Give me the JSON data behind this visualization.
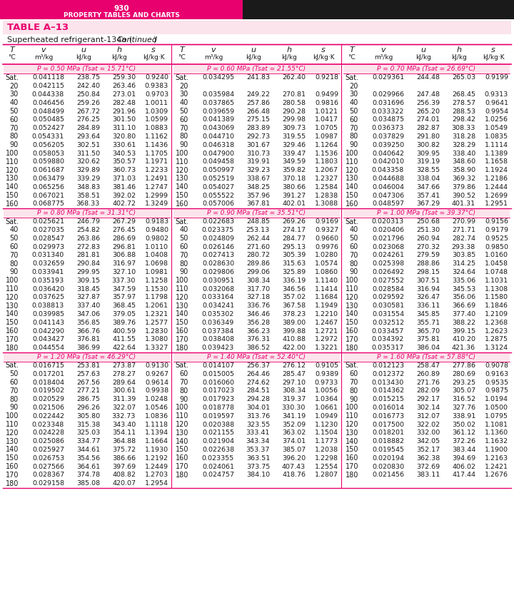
{
  "page_number": "930",
  "page_title": "PROPERTY TABLES AND CHARTS",
  "table_name": "TABLE A-13",
  "subtitle_normal": "Superheated refrigerant-134a (",
  "subtitle_italic": "Continued",
  "subtitle_end": ")",
  "col_headers_italic": [
    "T",
    "v",
    "u",
    "h",
    "s"
  ],
  "col_headers_normal": [
    "°C",
    "m³/kg",
    "kJ/kg",
    "kJ/kg",
    "kJ/kg·K"
  ],
  "sections": [
    {
      "label_pre": "P = 0.50 MPa (",
      "label_tsat": "T",
      "label_sub": "sat",
      "label_post": " = 15.71°C)",
      "rows": [
        [
          "Sat.",
          "0.041118",
          "238.75",
          "259.30",
          "0.9240"
        ],
        [
          "20",
          "0.042115",
          "242.40",
          "263.46",
          "0.9383"
        ],
        [
          "30",
          "0.044338",
          "250.84",
          "273.01",
          "0.9703"
        ],
        [
          "40",
          "0.046456",
          "259.26",
          "282.48",
          "1.0011"
        ],
        [
          "50",
          "0.048499",
          "267.72",
          "291.96",
          "1.0309"
        ],
        [
          "60",
          "0.050485",
          "276.25",
          "301.50",
          "1.0599"
        ],
        [
          "70",
          "0.052427",
          "284.89",
          "311.10",
          "1.0883"
        ],
        [
          "80",
          "0.054331",
          "293.64",
          "320.80",
          "1.1162"
        ],
        [
          "90",
          "0.056205",
          "302.51",
          "330.61",
          "1.1436"
        ],
        [
          "100",
          "0.058053",
          "311.50",
          "340.53",
          "1.1705"
        ],
        [
          "110",
          "0.059880",
          "320.62",
          "350.57",
          "1.1971"
        ],
        [
          "120",
          "0.061687",
          "329.89",
          "360.73",
          "1.2233"
        ],
        [
          "130",
          "0.063479",
          "339.29",
          "371.03",
          "1.2491"
        ],
        [
          "140",
          "0.065256",
          "348.83",
          "381.46",
          "1.2747"
        ],
        [
          "150",
          "0.067021",
          "358.51",
          "392.02",
          "1.2999"
        ],
        [
          "160",
          "0.068775",
          "368.33",
          "402.72",
          "1.3249"
        ]
      ]
    },
    {
      "label_pre": "P = 0.60 MPa (",
      "label_tsat": "T",
      "label_sub": "sat",
      "label_post": " = 21.55°C)",
      "rows": [
        [
          "Sat.",
          "0.034295",
          "241.83",
          "262.40",
          "0.9218"
        ],
        [
          "20",
          "",
          "",
          "",
          ""
        ],
        [
          "30",
          "0.035984",
          "249.22",
          "270.81",
          "0.9499"
        ],
        [
          "40",
          "0.037865",
          "257.86",
          "280.58",
          "0.9816"
        ],
        [
          "50",
          "0.039659",
          "266.48",
          "290.28",
          "1.0121"
        ],
        [
          "60",
          "0.041389",
          "275.15",
          "299.98",
          "1.0417"
        ],
        [
          "70",
          "0.043069",
          "283.89",
          "309.73",
          "1.0705"
        ],
        [
          "80",
          "0.044710",
          "292.73",
          "319.55",
          "1.0987"
        ],
        [
          "90",
          "0.046318",
          "301.67",
          "329.46",
          "1.1264"
        ],
        [
          "100",
          "0.047900",
          "310.73",
          "339.47",
          "1.1536"
        ],
        [
          "110",
          "0.049458",
          "319.91",
          "349.59",
          "1.1803"
        ],
        [
          "120",
          "0.050997",
          "329.23",
          "359.82",
          "1.2067"
        ],
        [
          "130",
          "0.052519",
          "338.67",
          "370.18",
          "1.2327"
        ],
        [
          "140",
          "0.054027",
          "348.25",
          "380.66",
          "1.2584"
        ],
        [
          "150",
          "0.055522",
          "357.96",
          "391.27",
          "1.2838"
        ],
        [
          "160",
          "0.057006",
          "367.81",
          "402.01",
          "1.3088"
        ]
      ]
    },
    {
      "label_pre": "P = 0.70 MPa (",
      "label_tsat": "T",
      "label_sub": "sat",
      "label_post": " = 26.69°C)",
      "rows": [
        [
          "Sat.",
          "0.029361",
          "244.48",
          "265.03",
          "0.9199"
        ],
        [
          "20",
          "",
          "",
          "",
          ""
        ],
        [
          "30",
          "0.029966",
          "247.48",
          "268.45",
          "0.9313"
        ],
        [
          "40",
          "0.031696",
          "256.39",
          "278.57",
          "0.9641"
        ],
        [
          "50",
          "0.033322",
          "265.20",
          "288.53",
          "0.9954"
        ],
        [
          "60",
          "0.034875",
          "274.01",
          "298.42",
          "1.0256"
        ],
        [
          "70",
          "0.036373",
          "282.87",
          "308.33",
          "1.0549"
        ],
        [
          "80",
          "0.037829",
          "291.80",
          "318.28",
          "1.0835"
        ],
        [
          "90",
          "0.039250",
          "300.82",
          "328.29",
          "1.1114"
        ],
        [
          "100",
          "0.040642",
          "309.95",
          "338.40",
          "1.1389"
        ],
        [
          "110",
          "0.042010",
          "319.19",
          "348.60",
          "1.1658"
        ],
        [
          "120",
          "0.043358",
          "328.55",
          "358.90",
          "1.1924"
        ],
        [
          "130",
          "0.044688",
          "338.04",
          "369.32",
          "1.2186"
        ],
        [
          "140",
          "0.046004",
          "347.66",
          "379.86",
          "1.2444"
        ],
        [
          "150",
          "0.047306",
          "357.41",
          "390.52",
          "1.2699"
        ],
        [
          "160",
          "0.048597",
          "367.29",
          "401.31",
          "1.2951"
        ]
      ]
    },
    {
      "label_pre": "P = 0.80 MPa (",
      "label_tsat": "T",
      "label_sub": "sat",
      "label_post": " = 31.31°C)",
      "rows": [
        [
          "Sat.",
          "0.025621",
          "246.79",
          "267.29",
          "0.9183"
        ],
        [
          "40",
          "0.027035",
          "254.82",
          "276.45",
          "0.9480"
        ],
        [
          "50",
          "0.028547",
          "263.86",
          "286.69",
          "0.9802"
        ],
        [
          "60",
          "0.029973",
          "272.83",
          "296.81",
          "1.0110"
        ],
        [
          "70",
          "0.031340",
          "281.81",
          "306.88",
          "1.0408"
        ],
        [
          "80",
          "0.032659",
          "290.84",
          "316.97",
          "1.0698"
        ],
        [
          "90",
          "0.033941",
          "299.95",
          "327.10",
          "1.0981"
        ],
        [
          "100",
          "0.035193",
          "309.15",
          "337.30",
          "1.1258"
        ],
        [
          "110",
          "0.036420",
          "318.45",
          "347.59",
          "1.1530"
        ],
        [
          "120",
          "0.037625",
          "327.87",
          "357.97",
          "1.1798"
        ],
        [
          "130",
          "0.038813",
          "337.40",
          "368.45",
          "1.2061"
        ],
        [
          "140",
          "0.039985",
          "347.06",
          "379.05",
          "1.2321"
        ],
        [
          "150",
          "0.041143",
          "356.85",
          "389.76",
          "1.2577"
        ],
        [
          "160",
          "0.042290",
          "366.76",
          "400.59",
          "1.2830"
        ],
        [
          "170",
          "0.043427",
          "376.81",
          "411.55",
          "1.3080"
        ],
        [
          "180",
          "0.044554",
          "386.99",
          "422.64",
          "1.3327"
        ]
      ]
    },
    {
      "label_pre": "P = 0.90 MPa (",
      "label_tsat": "T",
      "label_sub": "sat",
      "label_post": " = 35.51°C)",
      "rows": [
        [
          "Sat.",
          "0.022683",
          "248.85",
          "269.26",
          "0.9169"
        ],
        [
          "40",
          "0.023375",
          "253.13",
          "274.17",
          "0.9327"
        ],
        [
          "50",
          "0.024809",
          "262.44",
          "284.77",
          "0.9660"
        ],
        [
          "60",
          "0.026146",
          "271.60",
          "295.13",
          "0.9976"
        ],
        [
          "70",
          "0.027413",
          "280.72",
          "305.39",
          "1.0280"
        ],
        [
          "80",
          "0.028630",
          "289.86",
          "315.63",
          "1.0574"
        ],
        [
          "90",
          "0.029806",
          "299.06",
          "325.89",
          "1.0860"
        ],
        [
          "100",
          "0.030951",
          "308.34",
          "336.19",
          "1.1140"
        ],
        [
          "110",
          "0.032068",
          "317.70",
          "346.56",
          "1.1414"
        ],
        [
          "120",
          "0.033164",
          "327.18",
          "357.02",
          "1.1684"
        ],
        [
          "130",
          "0.034241",
          "336.76",
          "367.58",
          "1.1949"
        ],
        [
          "140",
          "0.035302",
          "346.46",
          "378.23",
          "1.2210"
        ],
        [
          "150",
          "0.036349",
          "356.28",
          "389.00",
          "1.2467"
        ],
        [
          "160",
          "0.037384",
          "366.23",
          "399.88",
          "1.2721"
        ],
        [
          "170",
          "0.038408",
          "376.31",
          "410.88",
          "1.2972"
        ],
        [
          "180",
          "0.039423",
          "386.52",
          "422.00",
          "1.3221"
        ]
      ]
    },
    {
      "label_pre": "P = 1.00 MPa (",
      "label_tsat": "T",
      "label_sub": "sat",
      "label_post": " = 39.37°C)",
      "rows": [
        [
          "Sat.",
          "0.020313",
          "250.68",
          "270.99",
          "0.9156"
        ],
        [
          "40",
          "0.020406",
          "251.30",
          "271.71",
          "0.9179"
        ],
        [
          "50",
          "0.021796",
          "260.94",
          "282.74",
          "0.9525"
        ],
        [
          "60",
          "0.023068",
          "270.32",
          "293.38",
          "0.9850"
        ],
        [
          "70",
          "0.024261",
          "279.59",
          "303.85",
          "1.0160"
        ],
        [
          "80",
          "0.025398",
          "288.86",
          "314.25",
          "1.0458"
        ],
        [
          "90",
          "0.026492",
          "298.15",
          "324.64",
          "1.0748"
        ],
        [
          "100",
          "0.027552",
          "307.51",
          "335.06",
          "1.1031"
        ],
        [
          "110",
          "0.028584",
          "316.94",
          "345.53",
          "1.1308"
        ],
        [
          "120",
          "0.029592",
          "326.47",
          "356.06",
          "1.1580"
        ],
        [
          "130",
          "0.030581",
          "336.11",
          "366.69",
          "1.1846"
        ],
        [
          "140",
          "0.031554",
          "345.85",
          "377.40",
          "1.2109"
        ],
        [
          "150",
          "0.032512",
          "355.71",
          "388.22",
          "1.2368"
        ],
        [
          "160",
          "0.033457",
          "365.70",
          "399.15",
          "1.2623"
        ],
        [
          "170",
          "0.034392",
          "375.81",
          "410.20",
          "1.2875"
        ],
        [
          "180",
          "0.035317",
          "386.04",
          "421.36",
          "1.3124"
        ]
      ]
    },
    {
      "label_pre": "P = 1.20 MPa (",
      "label_tsat": "T",
      "label_sub": "sat",
      "label_post": " = 46.29°C)",
      "rows": [
        [
          "Sat.",
          "0.016715",
          "253.81",
          "273.87",
          "0.9130"
        ],
        [
          "50",
          "0.017201",
          "257.63",
          "278.27",
          "0.9267"
        ],
        [
          "60",
          "0.018404",
          "267.56",
          "289.64",
          "0.9614"
        ],
        [
          "70",
          "0.019502",
          "277.21",
          "300.61",
          "0.9938"
        ],
        [
          "80",
          "0.020529",
          "286.75",
          "311.39",
          "1.0248"
        ],
        [
          "90",
          "0.021506",
          "296.26",
          "322.07",
          "1.0546"
        ],
        [
          "100",
          "0.022442",
          "305.80",
          "332.73",
          "1.0836"
        ],
        [
          "110",
          "0.023348",
          "315.38",
          "343.40",
          "1.1118"
        ],
        [
          "120",
          "0.024228",
          "325.03",
          "354.11",
          "1.1394"
        ],
        [
          "130",
          "0.025086",
          "334.77",
          "364.88",
          "1.1664"
        ],
        [
          "140",
          "0.025927",
          "344.61",
          "375.72",
          "1.1930"
        ],
        [
          "150",
          "0.026753",
          "354.56",
          "386.66",
          "1.2192"
        ],
        [
          "160",
          "0.027566",
          "364.61",
          "397.69",
          "1.2449"
        ],
        [
          "170",
          "0.028367",
          "374.78",
          "408.82",
          "1.2703"
        ],
        [
          "180",
          "0.029158",
          "385.08",
          "420.07",
          "1.2954"
        ]
      ]
    },
    {
      "label_pre": "P = 1.40 MPa (",
      "label_tsat": "T",
      "label_sub": "sat",
      "label_post": " = 52.40°C)",
      "rows": [
        [
          "Sat.",
          "0.014107",
          "256.37",
          "276.12",
          "0.9105"
        ],
        [
          "60",
          "0.015005",
          "264.46",
          "285.47",
          "0.9389"
        ],
        [
          "70",
          "0.016060",
          "274.62",
          "297.10",
          "0.9733"
        ],
        [
          "80",
          "0.017023",
          "284.51",
          "308.34",
          "1.0056"
        ],
        [
          "90",
          "0.017923",
          "294.28",
          "319.37",
          "1.0364"
        ],
        [
          "100",
          "0.018778",
          "304.01",
          "330.30",
          "1.0661"
        ],
        [
          "110",
          "0.019597",
          "313.76",
          "341.19",
          "1.0949"
        ],
        [
          "120",
          "0.020388",
          "323.55",
          "352.09",
          "1.1230"
        ],
        [
          "130",
          "0.021155",
          "333.41",
          "363.02",
          "1.1504"
        ],
        [
          "140",
          "0.021904",
          "343.34",
          "374.01",
          "1.1773"
        ],
        [
          "150",
          "0.022638",
          "353.37",
          "385.07",
          "1.2038"
        ],
        [
          "160",
          "0.023355",
          "363.51",
          "396.20",
          "1.2298"
        ],
        [
          "170",
          "0.024061",
          "373.75",
          "407.43",
          "1.2554"
        ],
        [
          "180",
          "0.024757",
          "384.10",
          "418.76",
          "1.2807"
        ]
      ]
    },
    {
      "label_pre": "P = 1.60 MPa (",
      "label_tsat": "T",
      "label_sub": "sat",
      "label_post": " = 57.88°C)",
      "rows": [
        [
          "Sat.",
          "0.012123",
          "258.47",
          "277.86",
          "0.9078"
        ],
        [
          "60",
          "0.012372",
          "260.89",
          "280.69",
          "0.9163"
        ],
        [
          "70",
          "0.013430",
          "271.76",
          "293.25",
          "0.9535"
        ],
        [
          "80",
          "0.014362",
          "282.09",
          "305.07",
          "0.9875"
        ],
        [
          "90",
          "0.015215",
          "292.17",
          "316.52",
          "1.0194"
        ],
        [
          "100",
          "0.016014",
          "302.14",
          "327.76",
          "1.0500"
        ],
        [
          "110",
          "0.016773",
          "312.07",
          "338.91",
          "1.0795"
        ],
        [
          "120",
          "0.017500",
          "322.02",
          "350.02",
          "1.1081"
        ],
        [
          "130",
          "0.018201",
          "332.00",
          "361.12",
          "1.1360"
        ],
        [
          "140",
          "0.018882",
          "342.05",
          "372.26",
          "1.1632"
        ],
        [
          "150",
          "0.019545",
          "352.17",
          "383.44",
          "1.1900"
        ],
        [
          "160",
          "0.020194",
          "362.38",
          "394.69",
          "1.2163"
        ],
        [
          "170",
          "0.020830",
          "372.69",
          "406.02",
          "1.2421"
        ],
        [
          "180",
          "0.021456",
          "383.11",
          "417.44",
          "1.2676"
        ]
      ]
    }
  ],
  "pink_dark": "#e8006e",
  "pink_light": "#fce4ec",
  "black": "#1a1a1a",
  "white": "#ffffff",
  "header_top_bg": "#cc0066",
  "page_num_text": "#ffffff",
  "table_label_color": "#cc0066"
}
